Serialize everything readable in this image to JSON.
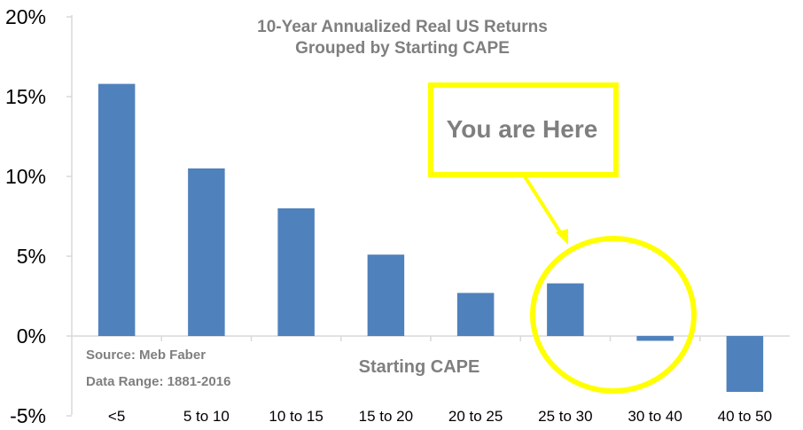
{
  "chart_data": {
    "type": "bar",
    "title": [
      "10-Year Annualized Real US Returns",
      "Grouped by Starting CAPE"
    ],
    "xlabel": "Starting CAPE",
    "ylabel": "",
    "categories": [
      "<5",
      "5 to 10",
      "10 to 15",
      "15 to 20",
      "20 to 25",
      "25 to 30",
      "30 to 40",
      "40 to 50"
    ],
    "values": [
      15.8,
      10.5,
      8.0,
      5.1,
      2.7,
      3.3,
      -0.3,
      -3.5
    ],
    "ylim": [
      -5,
      20
    ],
    "yticks": [
      20,
      15,
      10,
      5,
      0,
      -5
    ],
    "ytick_labels": [
      "20%",
      "15%",
      "10%",
      "5%",
      "0%",
      "-5%"
    ],
    "bar_color": "#4f81bd",
    "grid": false,
    "notes": [
      "Source: Meb Faber",
      "Data Range: 1881-2016"
    ],
    "annotation": {
      "text": "You are Here",
      "color": "#ffff00",
      "target_category": "25 to 30"
    }
  }
}
